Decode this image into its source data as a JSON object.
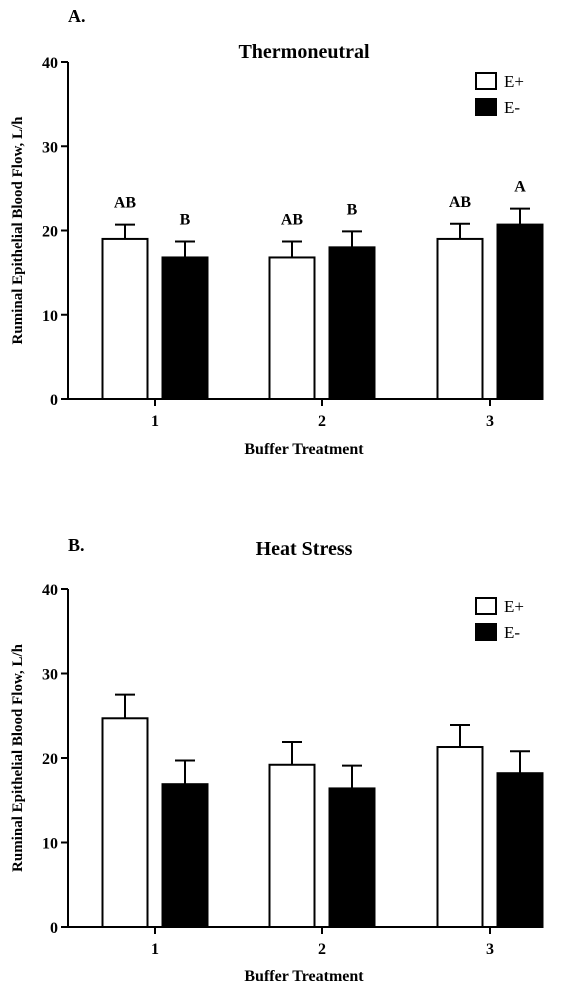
{
  "chart_data": [
    {
      "type": "bar",
      "panel_label": "A.",
      "title": "Thermoneutral",
      "xlabel": "Buffer Treatment",
      "ylabel": "Ruminal Epithelial Blood Flow, L/h",
      "categories": [
        "1",
        "2",
        "3"
      ],
      "ylim": [
        0,
        40
      ],
      "yticks": [
        0,
        10,
        20,
        30,
        40
      ],
      "legend_position": "top-right",
      "series": [
        {
          "name": "E+",
          "fill": "#ffffff",
          "values": [
            19.0,
            16.8,
            19.0
          ],
          "errors": [
            1.7,
            1.9,
            1.8
          ],
          "labels": [
            "AB",
            "AB",
            "AB"
          ]
        },
        {
          "name": "E-",
          "fill": "#000000",
          "values": [
            16.8,
            18.0,
            20.7
          ],
          "errors": [
            1.9,
            1.9,
            1.9
          ],
          "labels": [
            "B",
            "B",
            "A"
          ]
        }
      ]
    },
    {
      "type": "bar",
      "panel_label": "B.",
      "title": "Heat Stress",
      "xlabel": "Buffer Treatment",
      "ylabel": "Ruminal Epithelial Blood Flow, L/h",
      "categories": [
        "1",
        "2",
        "3"
      ],
      "ylim": [
        0,
        40
      ],
      "yticks": [
        0,
        10,
        20,
        30,
        40
      ],
      "legend_position": "top-right",
      "series": [
        {
          "name": "E+",
          "fill": "#ffffff",
          "values": [
            24.7,
            19.2,
            21.3
          ],
          "errors": [
            2.8,
            2.7,
            2.6
          ],
          "labels": []
        },
        {
          "name": "E-",
          "fill": "#000000",
          "values": [
            16.9,
            16.4,
            18.2
          ],
          "errors": [
            2.8,
            2.7,
            2.6
          ],
          "labels": []
        }
      ]
    }
  ]
}
